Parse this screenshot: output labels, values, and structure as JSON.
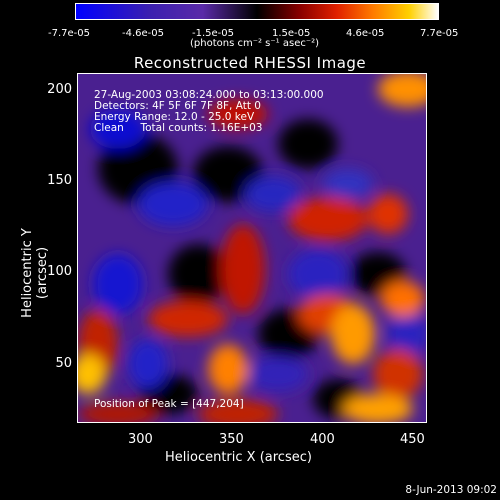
{
  "colorbar": {
    "ticks": [
      "-7.7e-05",
      "-4.6e-05",
      "-1.5e-05",
      "1.5e-05",
      "4.6e-05",
      "7.7e-05"
    ],
    "units": "(photons cm⁻² s⁻¹ asec⁻²)"
  },
  "title": "Reconstructed RHESSI Image",
  "info": {
    "line1": "27-Aug-2003 03:08:24.000 to 03:13:00.000",
    "line2": "Detectors: 4F 5F 6F 7F 8F, Att 0",
    "line3": "Energy Range: 12.0 - 25.0 keV",
    "line4": "Clean     Total counts: 1.16E+03"
  },
  "peak": "Position of Peak = [447,204]",
  "axes": {
    "xlabel": "Heliocentric X (arcsec)",
    "ylabel": "Heliocentric Y (arcsec)",
    "xticks": [
      "300",
      "350",
      "400",
      "450"
    ],
    "yticks": [
      "200",
      "150",
      "100",
      "50"
    ]
  },
  "footer_date": "8-Jun-2013 09:02"
}
